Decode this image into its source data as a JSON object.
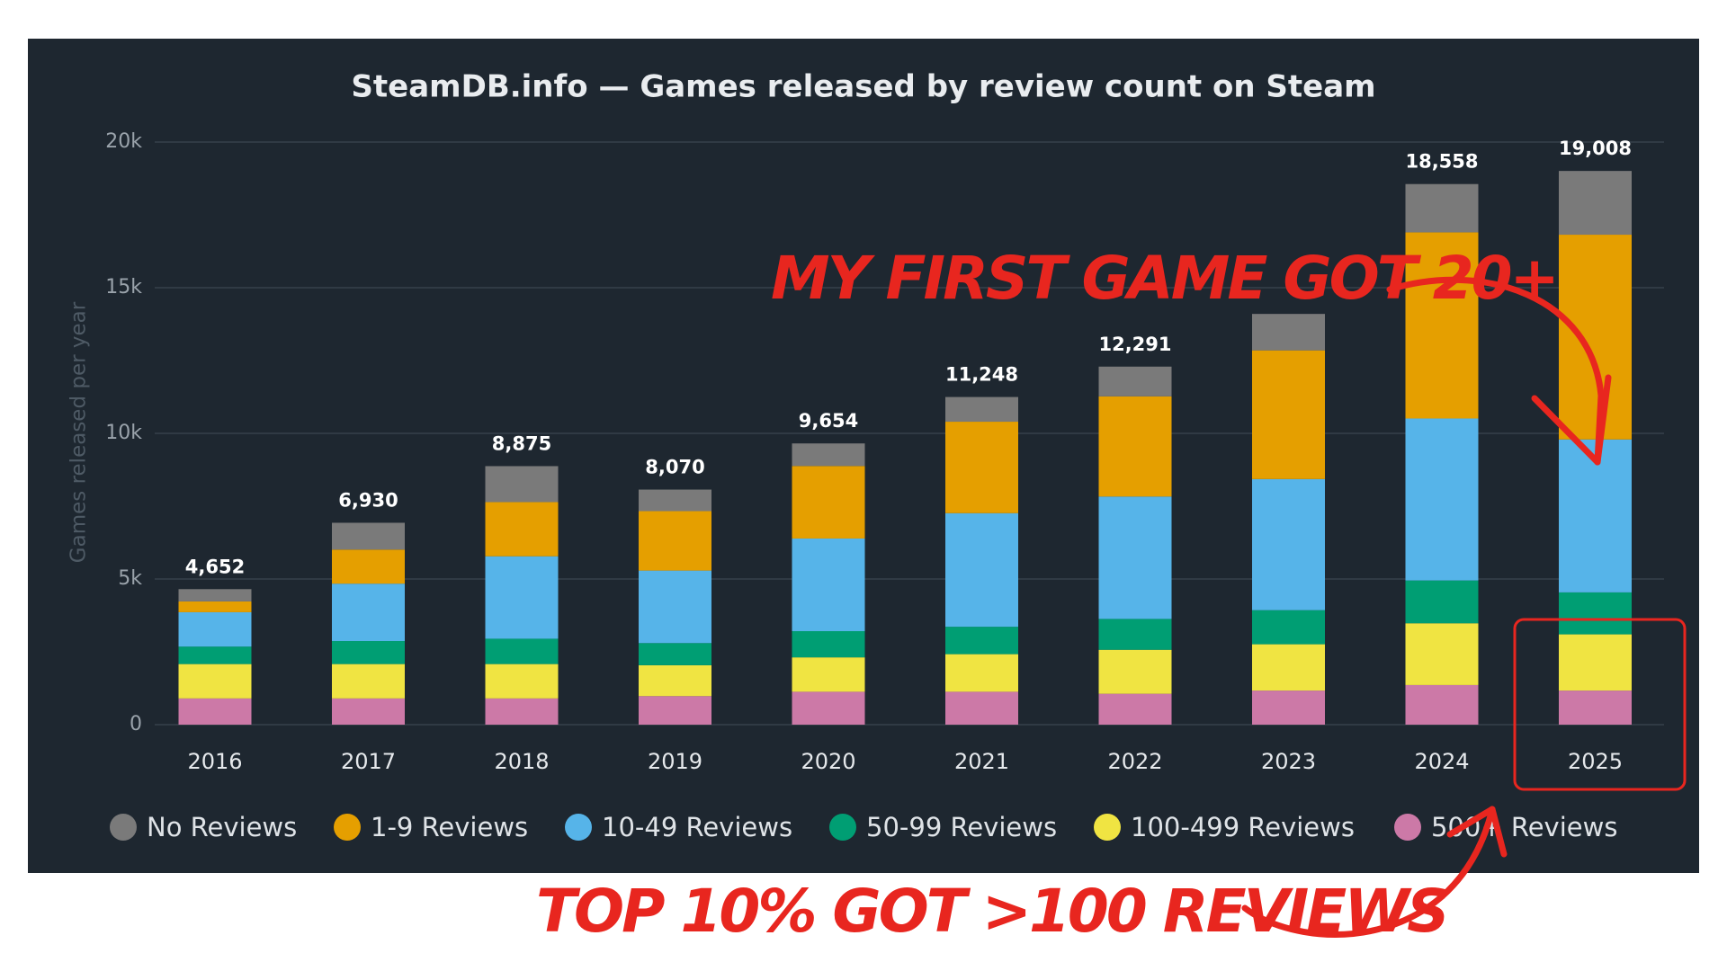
{
  "chart_data": {
    "type": "stacked_bar",
    "title": "SteamDB.info — Games released by review count on Steam",
    "ylabel": "Games released per year",
    "categories": [
      "2016",
      "2017",
      "2018",
      "2019",
      "2020",
      "2021",
      "2022",
      "2023",
      "2024",
      "2025"
    ],
    "series": [
      {
        "name": "500+ Reviews",
        "color": "#cc79a7",
        "values": [
          900,
          900,
          900,
          980,
          1130,
          1130,
          1060,
          1170,
          1360,
          1170
        ]
      },
      {
        "name": "100-499 Reviews",
        "color": "#f0e442",
        "values": [
          1180,
          1180,
          1180,
          1060,
          1180,
          1290,
          1510,
          1590,
          2120,
          1930
        ]
      },
      {
        "name": "50-99 Reviews",
        "color": "#009e73",
        "values": [
          600,
          790,
          870,
          760,
          900,
          940,
          1060,
          1170,
          1470,
          1440
        ]
      },
      {
        "name": "10-49 Reviews",
        "color": "#56b4e9",
        "values": [
          1180,
          1970,
          2830,
          2490,
          3180,
          3900,
          4200,
          4500,
          5560,
          5250
        ]
      },
      {
        "name": "1-9 Reviews",
        "color": "#e59f00",
        "values": [
          370,
          1170,
          1860,
          2040,
          2490,
          3140,
          3440,
          4420,
          6390,
          7030
        ]
      },
      {
        "name": "No Reviews",
        "color": "#7a7a7a",
        "values": [
          422,
          920,
          1235,
          740,
          774,
          848,
          1021,
          1250,
          1658,
          2188
        ]
      }
    ],
    "totals": [
      4652,
      6930,
      8875,
      8070,
      9654,
      11248,
      12291,
      null,
      18558,
      19008
    ],
    "total_labels": [
      "4,652",
      "6,930",
      "8,875",
      "8,070",
      "9,654",
      "11,248",
      "12,291",
      null,
      "18,558",
      "19,008"
    ],
    "ylim": [
      0,
      20000
    ],
    "yticks": [
      0,
      {
        "value": 5000,
        "label": "5k"
      },
      {
        "value": 10000,
        "label": "10k"
      },
      {
        "value": 15000,
        "label": "15k"
      },
      {
        "value": 20000,
        "label": "20k"
      }
    ],
    "grid": true,
    "legend_order": [
      5,
      4,
      3,
      2,
      1,
      0
    ],
    "annotations": [
      "MY FIRST GAME GOT 20+",
      "TOP 10% GOT >100 REVIEWS"
    ]
  }
}
